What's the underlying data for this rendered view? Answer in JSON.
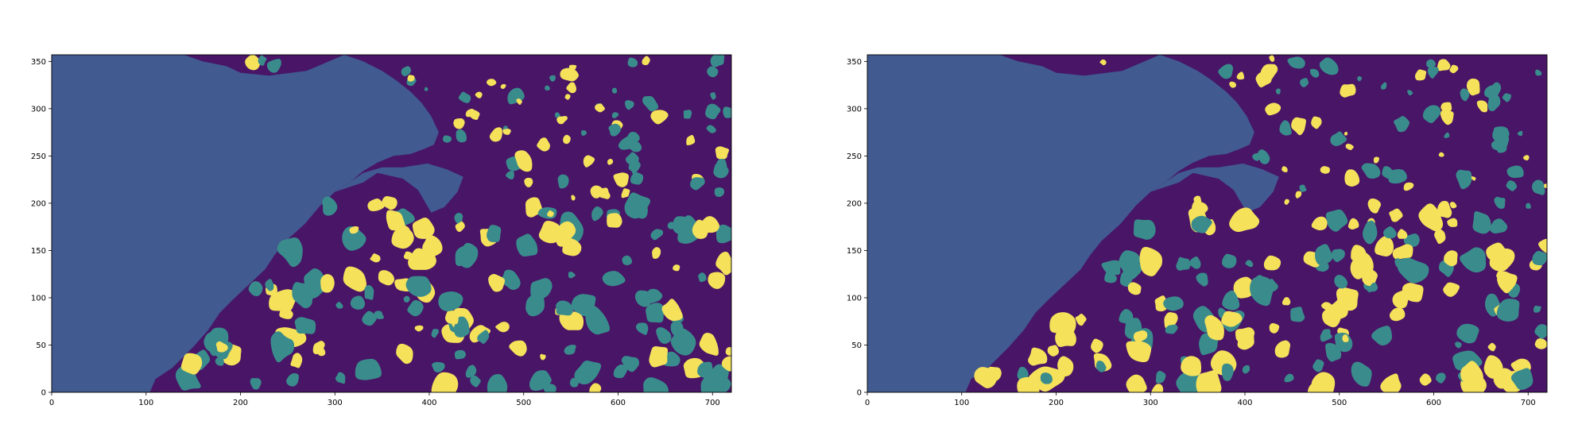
{
  "colors": {
    "ocean": "#481567",
    "land": "#415a8f",
    "teal_eddy": "#3a8c8c",
    "yellow_eddy": "#f5e15a",
    "axis": "#000000"
  },
  "panels": [
    {
      "name": "left",
      "x_ticks": [
        "0",
        "100",
        "200",
        "300",
        "400",
        "500",
        "600",
        "700"
      ],
      "y_ticks": [
        "0",
        "50",
        "100",
        "150",
        "200",
        "250",
        "300",
        "350"
      ],
      "x_range": [
        0,
        720
      ],
      "y_range": [
        0,
        357
      ],
      "seed": 17
    },
    {
      "name": "right",
      "x_ticks": [
        "0",
        "100",
        "200",
        "300",
        "400",
        "500",
        "600",
        "700"
      ],
      "y_ticks": [
        "0",
        "50",
        "100",
        "150",
        "200",
        "250",
        "300",
        "350"
      ],
      "x_range": [
        0,
        720
      ],
      "y_range": [
        0,
        357
      ],
      "seed": 91
    }
  ]
}
